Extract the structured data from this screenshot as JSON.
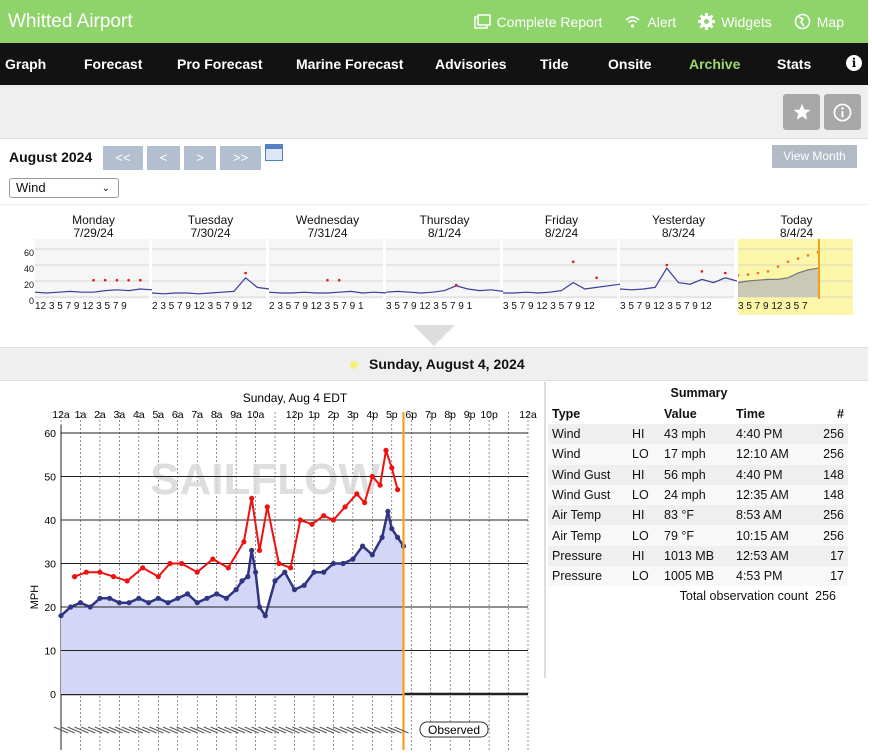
{
  "header": {
    "site_title": "Whitted Airport",
    "links": [
      {
        "label": "Complete Report",
        "icon": "report-icon"
      },
      {
        "label": "Alert",
        "icon": "wifi-icon"
      },
      {
        "label": "Widgets",
        "icon": "gear-icon"
      },
      {
        "label": "Map",
        "icon": "globe-icon"
      }
    ]
  },
  "nav": {
    "items": [
      "Graph",
      "Forecast",
      "Pro Forecast",
      "Marine Forecast",
      "Advisories",
      "Tide",
      "Onsite",
      "Archive",
      "Stats"
    ],
    "active": "Archive",
    "info_glyph": "i"
  },
  "month_bar": {
    "month": "August 2024",
    "buttons": [
      "<<",
      "<",
      ">",
      ">>"
    ],
    "view_month": "View Month",
    "select_value": "Wind"
  },
  "week": [
    {
      "day": "Monday",
      "date": "7/29/24",
      "ticks": "12 3 5 7 9 12 3 5 7 9"
    },
    {
      "day": "Tuesday",
      "date": "7/30/24",
      "ticks": "2 3 5 7 9 12 3 5 7 9 12"
    },
    {
      "day": "Wednesday",
      "date": "7/31/24",
      "ticks": "2 3 5 7 9 12 3 5 7 9 1"
    },
    {
      "day": "Thursday",
      "date": "8/1/24",
      "ticks": "3 5 7 9 12 3 5 7 9 1"
    },
    {
      "day": "Friday",
      "date": "8/2/24",
      "ticks": "3 5 7 9 12 3 5 7 9 12"
    },
    {
      "day": "Yesterday",
      "date": "8/3/24",
      "ticks": "3 5 7 9 12 3 5 7 9 12"
    },
    {
      "day": "Today",
      "date": "8/4/24",
      "ticks": "3 5 7 9 12 3 5 7"
    }
  ],
  "mini_y_ticks": [
    "60",
    "40",
    "20",
    "0"
  ],
  "date_heading": "Sunday, August 4, 2024",
  "graph": {
    "title": "Sunday, Aug 4 EDT",
    "x_ticks": [
      "12a",
      "1a",
      "2a",
      "3a",
      "4a",
      "5a",
      "6a",
      "7a",
      "8a",
      "9a",
      "10a",
      "12p",
      "1p",
      "2p",
      "3p",
      "4p",
      "5p",
      "6p",
      "7p",
      "8p",
      "9p",
      "10p",
      "12a"
    ],
    "y_label": "MPH",
    "watermark": "SAILFLOW",
    "observed_label": "Observed",
    "colors": {
      "wind": "#2f3580",
      "gust": "#ee1111",
      "fill": "#d4d6f7",
      "now": "#f5a01a"
    }
  },
  "chart_data": {
    "type": "line",
    "title": "Sunday, Aug 4 EDT",
    "xlabel": "",
    "ylabel": "MPH",
    "x_unit": "hour of day",
    "xlim": [
      0,
      24
    ],
    "ylim": [
      0,
      60
    ],
    "y_ticks": [
      0,
      10,
      20,
      30,
      40,
      50,
      60
    ],
    "now_hour": 17.6,
    "series": [
      {
        "name": "",
        "x": [
          0,
          0.5,
          1,
          1.5,
          2,
          2.5,
          3,
          3.5,
          4,
          4.5,
          5,
          5.5,
          6,
          6.5,
          7,
          7.5,
          8,
          8.5,
          9,
          9.3,
          9.6,
          9.8,
          10,
          10.2,
          10.5,
          11,
          11.5,
          12,
          12.5,
          13,
          13.5,
          14,
          14.5,
          15,
          15.5,
          16,
          16.5,
          16.8,
          17,
          17.3,
          17.6
        ],
        "y": [
          18,
          20,
          21,
          20,
          22,
          22,
          21,
          21,
          22,
          21,
          22,
          21,
          22,
          23,
          21,
          22,
          23,
          22,
          24,
          26,
          27,
          33,
          28,
          20,
          18,
          26,
          28,
          24,
          25,
          28,
          28,
          30,
          30,
          31,
          34,
          32,
          36,
          42,
          38,
          36,
          34
        ]
      },
      {
        "name": "",
        "x": [
          0.7,
          1.3,
          2,
          2.7,
          3.4,
          4.2,
          5,
          5.6,
          6.2,
          7,
          7.8,
          8.6,
          9.4,
          9.8,
          10.2,
          10.6,
          11.2,
          11.8,
          12.3,
          12.9,
          13.5,
          14,
          14.6,
          15.2,
          15.6,
          16,
          16.4,
          16.7,
          17,
          17.3
        ],
        "y": [
          27,
          28,
          28,
          27,
          26,
          29,
          27,
          30,
          30,
          28,
          31,
          29,
          35,
          45,
          33,
          43,
          30,
          29,
          40,
          39,
          41,
          40,
          43,
          46,
          44,
          50,
          48,
          56,
          52,
          47
        ]
      }
    ]
  },
  "summary": {
    "heading": "Summary",
    "columns": [
      "Type",
      "",
      "Value",
      "Time",
      "#"
    ],
    "rows": [
      [
        "Wind",
        "HI",
        "43 mph",
        "4:40 PM",
        "256"
      ],
      [
        "Wind",
        "LO",
        "17 mph",
        "12:10 AM",
        "256"
      ],
      [
        "Wind Gust",
        "HI",
        "56 mph",
        "4:40 PM",
        "148"
      ],
      [
        "Wind Gust",
        "LO",
        "24 mph",
        "12:35 AM",
        "148"
      ],
      [
        "Air Temp",
        "HI",
        "83 °F",
        "8:53 AM",
        "256"
      ],
      [
        "Air Temp",
        "LO",
        "79 °F",
        "10:15 AM",
        "256"
      ],
      [
        "Pressure",
        "HI",
        "1013 MB",
        "12:53 AM",
        "17"
      ],
      [
        "Pressure",
        "LO",
        "1005 MB",
        "4:53 PM",
        "17"
      ]
    ],
    "total_label": "Total observation count",
    "total_value": "256"
  }
}
